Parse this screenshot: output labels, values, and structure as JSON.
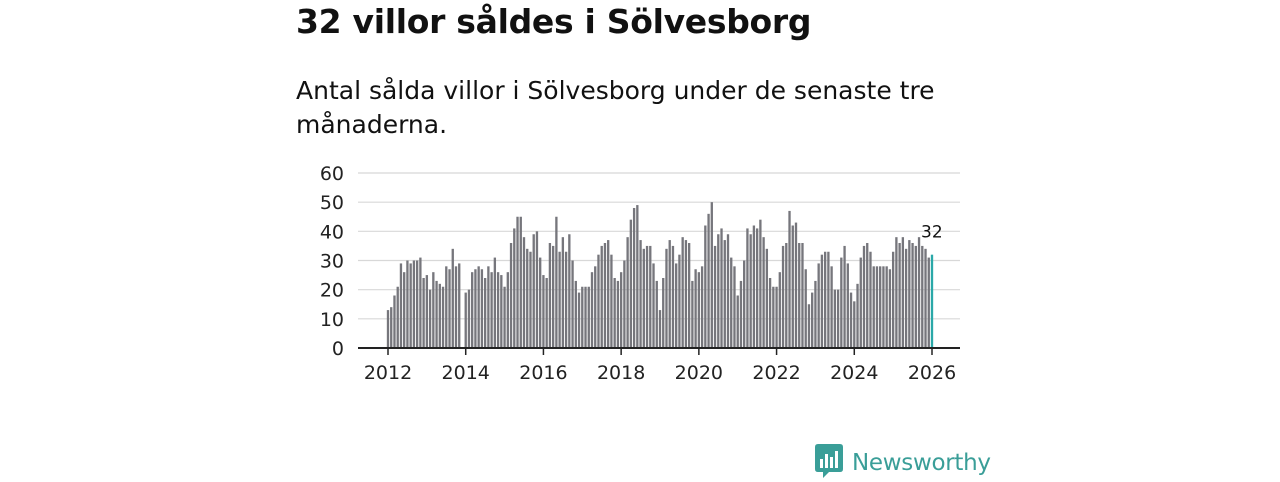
{
  "title": "32 villor såldes i Sölvesborg",
  "subtitle": "Antal sålda villor i Sölvesborg under de senaste tre månaderna.",
  "brand": {
    "name": "Newsworthy",
    "color": "#3a9e98",
    "icon": "newsworthy-logo-icon"
  },
  "colors": {
    "bar": "#76767c",
    "highlight": "#2aa8a8",
    "grid": "#d8d8d8",
    "axis": "#222222"
  },
  "chart_data": {
    "type": "bar",
    "title": "Antal sålda villor i Sölvesborg under de senaste tre månaderna.",
    "xlabel": "",
    "ylabel": "",
    "ylim": [
      0,
      60
    ],
    "yticks": [
      0,
      10,
      20,
      30,
      40,
      50,
      60
    ],
    "xticks": [
      "2012",
      "2014",
      "2016",
      "2018",
      "2020",
      "2022",
      "2024",
      "2026"
    ],
    "start": {
      "year": 2012,
      "month": 1
    },
    "frequency": "monthly",
    "grid": true,
    "last_value_label": "32",
    "values": [
      13,
      14,
      18,
      21,
      29,
      26,
      30,
      29,
      30,
      30,
      31,
      24,
      25,
      20,
      26,
      23,
      22,
      21,
      28,
      27,
      34,
      28,
      29,
      0,
      19,
      20,
      26,
      27,
      28,
      27,
      24,
      28,
      26,
      31,
      26,
      25,
      21,
      26,
      36,
      41,
      45,
      45,
      38,
      34,
      33,
      39,
      40,
      31,
      25,
      24,
      36,
      35,
      45,
      33,
      38,
      33,
      39,
      30,
      23,
      19,
      21,
      21,
      21,
      26,
      28,
      32,
      35,
      36,
      37,
      32,
      24,
      23,
      26,
      30,
      38,
      44,
      48,
      49,
      37,
      34,
      35,
      35,
      29,
      23,
      13,
      24,
      34,
      37,
      35,
      29,
      32,
      38,
      37,
      36,
      23,
      27,
      26,
      28,
      42,
      46,
      50,
      35,
      39,
      41,
      37,
      39,
      31,
      28,
      18,
      23,
      30,
      41,
      39,
      42,
      41,
      44,
      38,
      34,
      24,
      21,
      21,
      26,
      35,
      36,
      47,
      42,
      43,
      36,
      36,
      27,
      15,
      19,
      23,
      29,
      32,
      33,
      33,
      28,
      20,
      20,
      31,
      35,
      29,
      19,
      16,
      22,
      31,
      35,
      36,
      33,
      28,
      28,
      28,
      28,
      28,
      27,
      33,
      38,
      36,
      38,
      34,
      37,
      36,
      35,
      38,
      35,
      34,
      31,
      32
    ]
  }
}
